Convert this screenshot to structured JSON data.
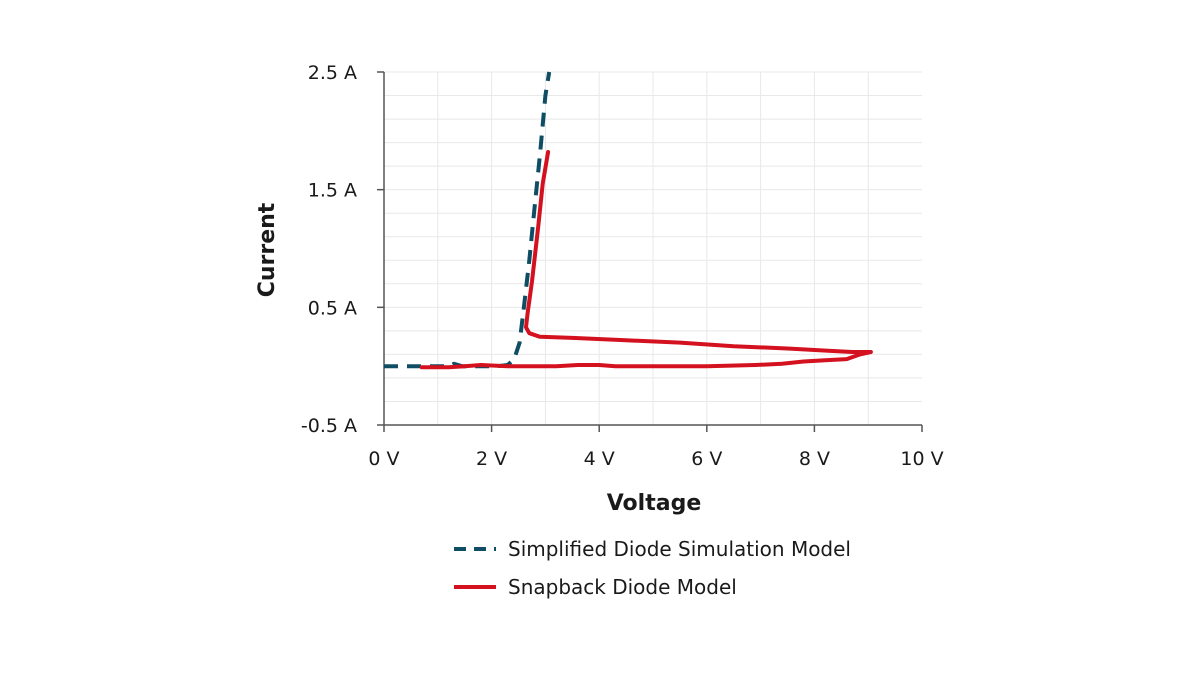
{
  "chart_data": {
    "type": "line",
    "title": "",
    "xlabel": "Voltage",
    "ylabel": "Current",
    "xlim": [
      0,
      10
    ],
    "ylim": [
      -0.5,
      2.5
    ],
    "x_ticks": [
      0,
      2,
      4,
      6,
      8,
      10
    ],
    "x_tick_labels": [
      "0 V",
      "2 V",
      "4 V",
      "6 V",
      "8 V",
      "10 V"
    ],
    "y_ticks": [
      -0.5,
      0.5,
      1.5,
      2.5
    ],
    "y_tick_labels": [
      "-0.5 A",
      "0.5 A",
      "1.5 A",
      "2.5 A"
    ],
    "grid": true,
    "legend_position": "bottom",
    "series": [
      {
        "name": "Simplified Diode Simulation Model",
        "color": "#0e4d63",
        "style": "dashed",
        "points": [
          [
            0,
            0
          ],
          [
            1.2,
            0
          ],
          [
            1.3,
            0.02
          ],
          [
            1.45,
            0
          ],
          [
            2.1,
            0
          ],
          [
            2.3,
            0.01
          ],
          [
            2.42,
            0.06
          ],
          [
            2.52,
            0.2
          ],
          [
            2.6,
            0.5
          ],
          [
            2.7,
            0.9
          ],
          [
            2.8,
            1.35
          ],
          [
            2.9,
            1.8
          ],
          [
            3.0,
            2.3
          ],
          [
            3.07,
            2.5
          ]
        ]
      },
      {
        "name": "Snapback Diode Model",
        "color": "#d4111e",
        "style": "solid",
        "points": [
          [
            3.05,
            1.82
          ],
          [
            2.95,
            1.55
          ],
          [
            2.87,
            1.2
          ],
          [
            2.75,
            0.72
          ],
          [
            2.67,
            0.45
          ],
          [
            2.64,
            0.33
          ],
          [
            2.7,
            0.28
          ],
          [
            2.9,
            0.25
          ],
          [
            3.5,
            0.24
          ],
          [
            4.5,
            0.22
          ],
          [
            5.5,
            0.2
          ],
          [
            6.5,
            0.17
          ],
          [
            7.5,
            0.15
          ],
          [
            8.3,
            0.13
          ],
          [
            8.7,
            0.12
          ],
          [
            9.05,
            0.12
          ],
          [
            8.85,
            0.1
          ],
          [
            8.6,
            0.06
          ],
          [
            8.2,
            0.05
          ],
          [
            7.8,
            0.04
          ],
          [
            7.4,
            0.02
          ],
          [
            6.9,
            0.01
          ],
          [
            6.0,
            0.0
          ],
          [
            5.0,
            0.0
          ],
          [
            4.3,
            0.0
          ],
          [
            4.0,
            0.01
          ],
          [
            3.6,
            0.01
          ],
          [
            3.2,
            0.0
          ],
          [
            2.8,
            0.0
          ],
          [
            2.3,
            0.0
          ],
          [
            1.8,
            0.01
          ],
          [
            1.5,
            0.0
          ],
          [
            1.2,
            -0.01
          ],
          [
            0.7,
            -0.01
          ]
        ]
      }
    ]
  }
}
